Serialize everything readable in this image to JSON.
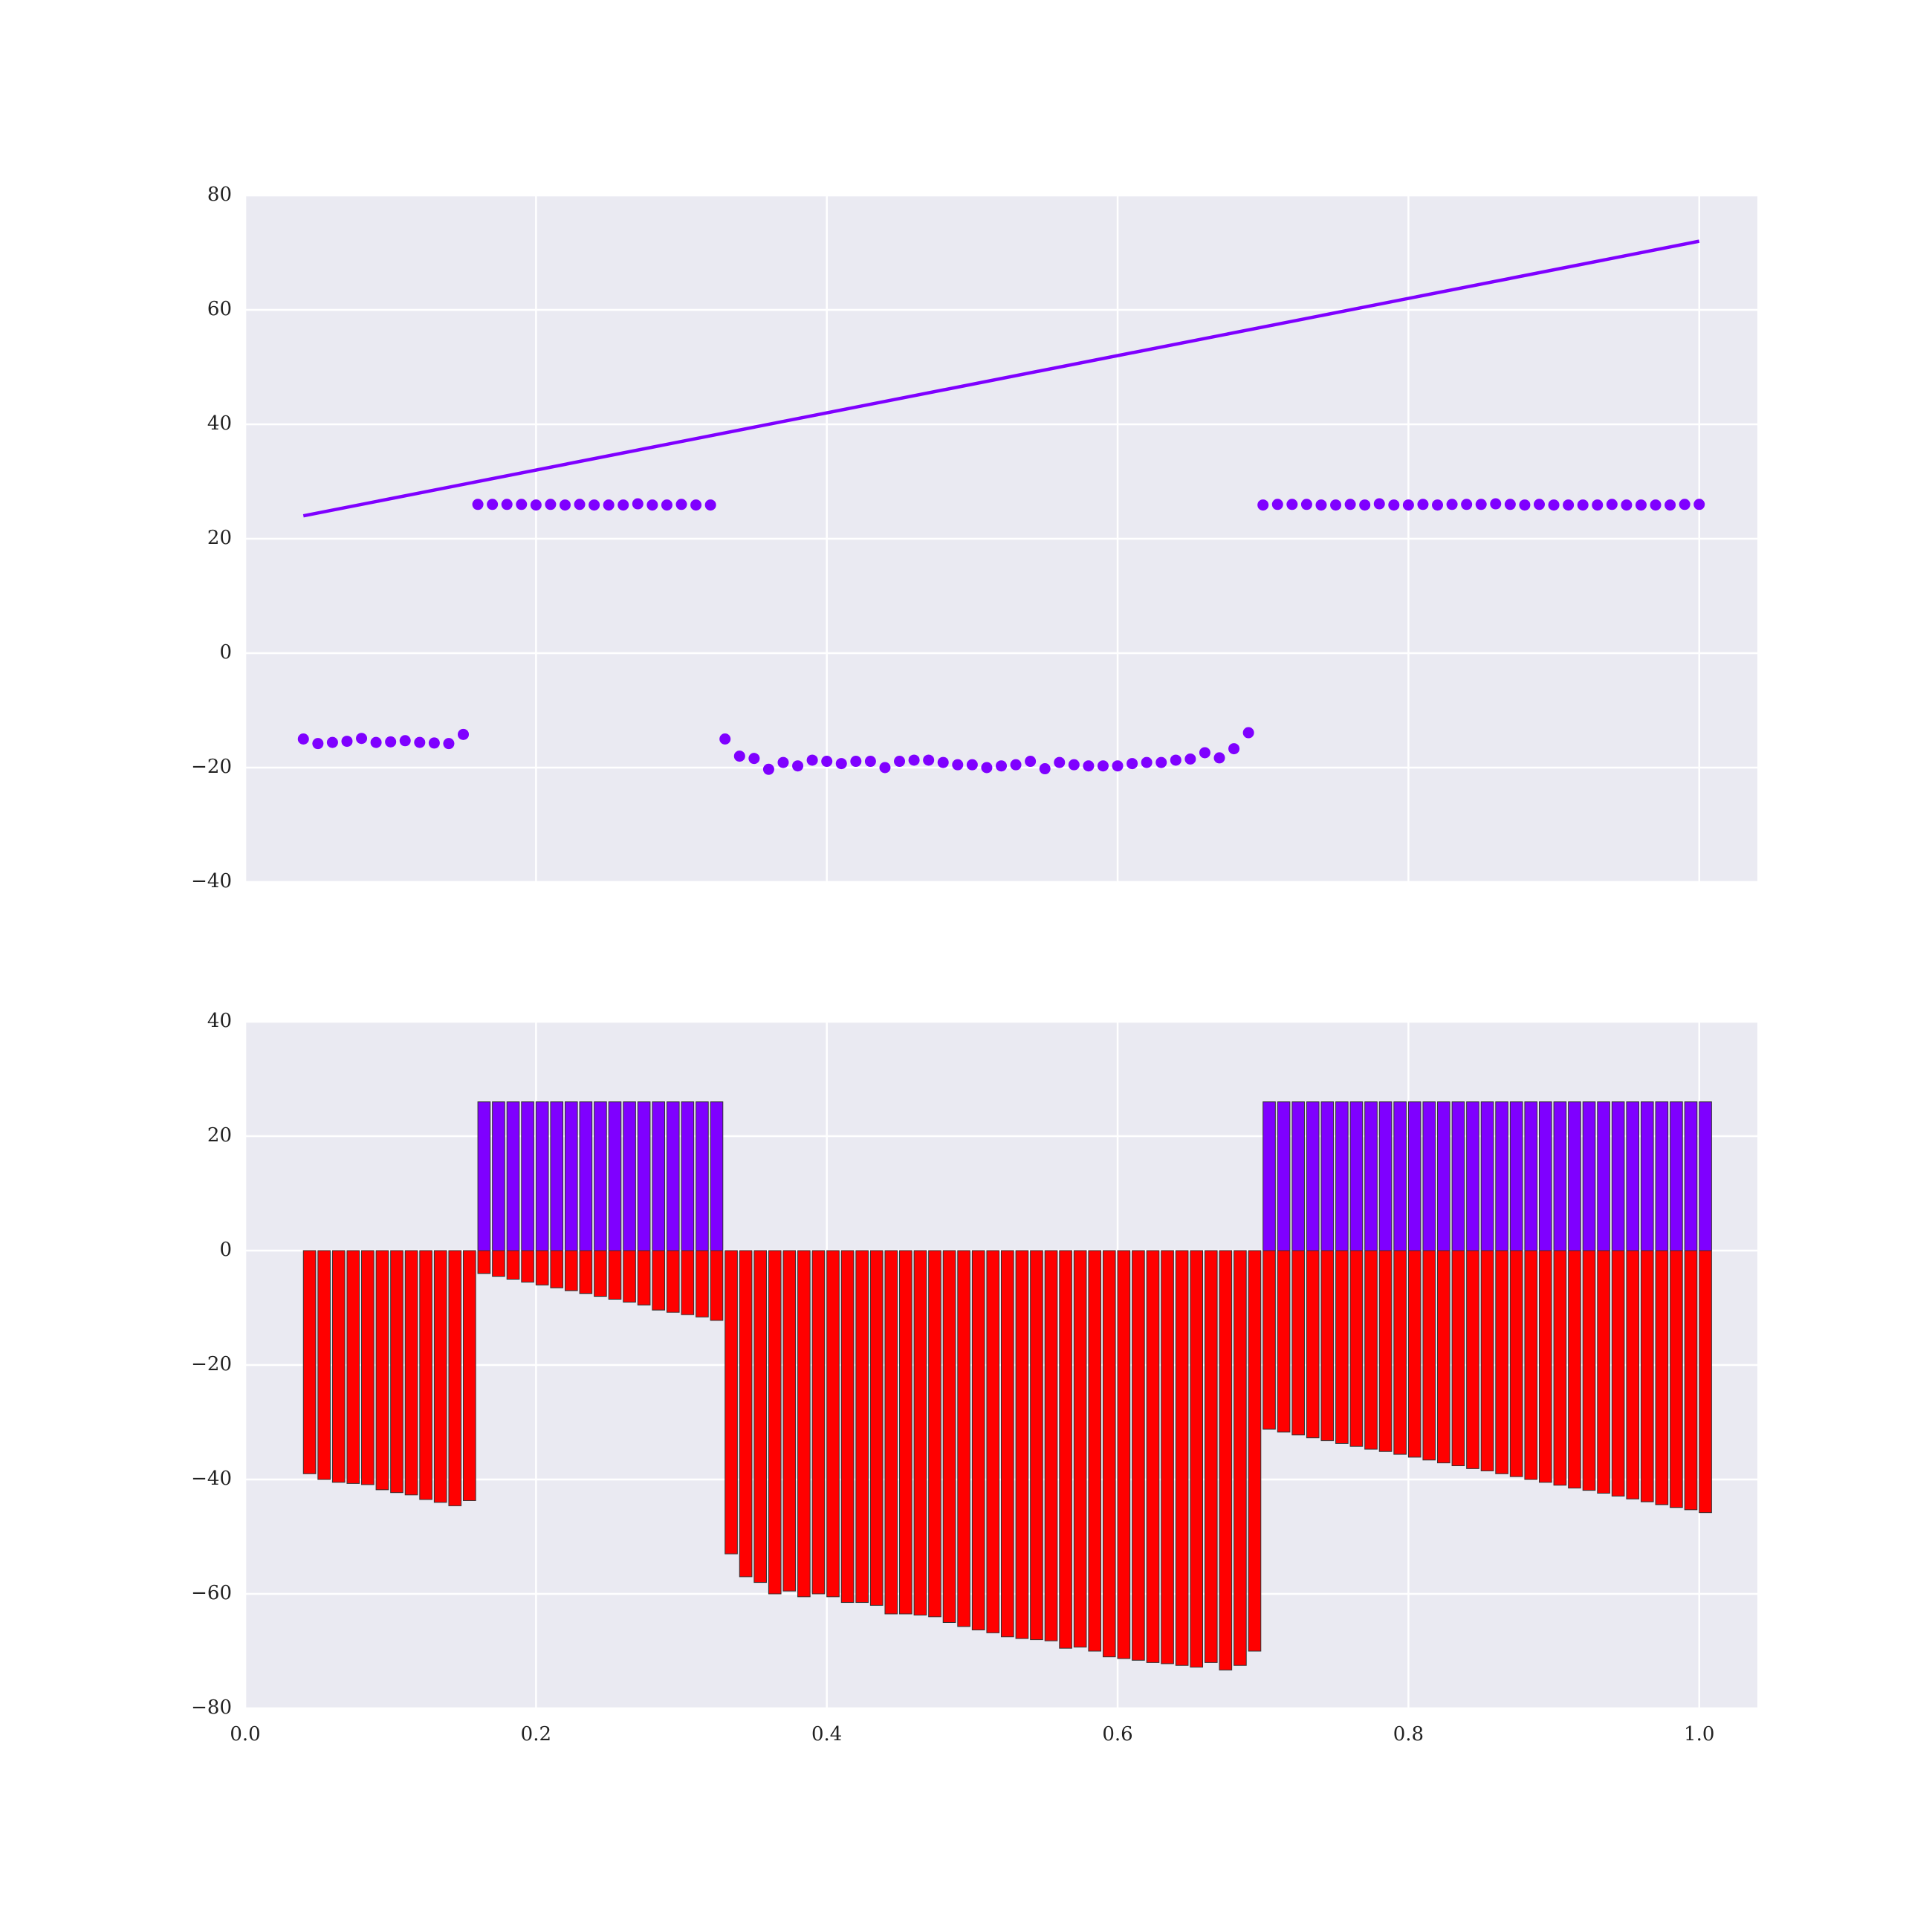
{
  "chart_data": [
    {
      "type": "scatter",
      "x": [
        0.04,
        0.05,
        0.06,
        0.07,
        0.08,
        0.09,
        0.1,
        0.11,
        0.12,
        0.13,
        0.14,
        0.15,
        0.16,
        0.17,
        0.18,
        0.19,
        0.2,
        0.21,
        0.22,
        0.23,
        0.24,
        0.25,
        0.26,
        0.27,
        0.28,
        0.29,
        0.3,
        0.31,
        0.32,
        0.33,
        0.34,
        0.35,
        0.36,
        0.37,
        0.38,
        0.39,
        0.4,
        0.41,
        0.42,
        0.43,
        0.44,
        0.45,
        0.46,
        0.47,
        0.48,
        0.49,
        0.5,
        0.51,
        0.52,
        0.53,
        0.54,
        0.55,
        0.56,
        0.57,
        0.58,
        0.59,
        0.6,
        0.61,
        0.62,
        0.63,
        0.64,
        0.65,
        0.66,
        0.67,
        0.68,
        0.69,
        0.7,
        0.71,
        0.72,
        0.73,
        0.74,
        0.75,
        0.76,
        0.77,
        0.78,
        0.79,
        0.8,
        0.81,
        0.82,
        0.83,
        0.84,
        0.85,
        0.86,
        0.87,
        0.88,
        0.89,
        0.9,
        0.91,
        0.92,
        0.93,
        0.94,
        0.95,
        0.96,
        0.97,
        0.98,
        0.99,
        1.0
      ],
      "series": [
        {
          "type": "line",
          "color": "#7f00ff",
          "x": [
            0.04,
            1.0
          ],
          "values": [
            24,
            72
          ]
        },
        {
          "type": "scatter",
          "color": "#7f00ff",
          "values": [
            -15,
            -15.8,
            -15.6,
            -15.4,
            -14.9,
            -15.6,
            -15.5,
            -15.3,
            -15.6,
            -15.7,
            -15.8,
            -14.2,
            26,
            26,
            26,
            26,
            25.9,
            26,
            25.9,
            26,
            25.9,
            25.9,
            25.9,
            26.1,
            25.9,
            25.9,
            26,
            25.9,
            25.9,
            -15,
            -18,
            -18.4,
            -20.3,
            -19.1,
            -19.7,
            -18.7,
            -18.9,
            -19.3,
            -18.9,
            -18.9,
            -20,
            -18.9,
            -18.7,
            -18.7,
            -19.1,
            -19.5,
            -19.5,
            -20,
            -19.7,
            -19.5,
            -18.9,
            -20.2,
            -19.1,
            -19.5,
            -19.7,
            -19.7,
            -19.7,
            -19.3,
            -19.1,
            -19.1,
            -18.7,
            -18.5,
            -17.4,
            -18.3,
            -16.7,
            -13.9,
            25.9,
            26,
            26,
            26,
            25.9,
            25.9,
            26,
            25.9,
            26.1,
            25.9,
            25.9,
            26,
            25.9,
            26,
            26,
            26,
            26.1,
            26,
            25.9,
            26,
            25.9,
            25.9,
            25.9,
            25.9,
            26,
            25.9,
            25.9,
            25.9,
            25.9,
            26,
            26
          ]
        }
      ],
      "xlim": [
        0,
        1.04
      ],
      "ylim": [
        -40,
        80
      ],
      "xticks": [
        0,
        0.2,
        0.4,
        0.6,
        0.8,
        1.0
      ],
      "show_xtick_labels": false,
      "yticks": [
        {
          "value": -40,
          "label": "−40"
        },
        {
          "value": -20,
          "label": "−20"
        },
        0,
        20,
        40,
        60,
        80
      ],
      "grid": true
    },
    {
      "type": "bar",
      "x": [
        0.04,
        0.05,
        0.06,
        0.07,
        0.08,
        0.09,
        0.1,
        0.11,
        0.12,
        0.13,
        0.14,
        0.15,
        0.16,
        0.17,
        0.18,
        0.19,
        0.2,
        0.21,
        0.22,
        0.23,
        0.24,
        0.25,
        0.26,
        0.27,
        0.28,
        0.29,
        0.3,
        0.31,
        0.32,
        0.33,
        0.34,
        0.35,
        0.36,
        0.37,
        0.38,
        0.39,
        0.4,
        0.41,
        0.42,
        0.43,
        0.44,
        0.45,
        0.46,
        0.47,
        0.48,
        0.49,
        0.5,
        0.51,
        0.52,
        0.53,
        0.54,
        0.55,
        0.56,
        0.57,
        0.58,
        0.59,
        0.6,
        0.61,
        0.62,
        0.63,
        0.64,
        0.65,
        0.66,
        0.67,
        0.68,
        0.69,
        0.7,
        0.71,
        0.72,
        0.73,
        0.74,
        0.75,
        0.76,
        0.77,
        0.78,
        0.79,
        0.8,
        0.81,
        0.82,
        0.83,
        0.84,
        0.85,
        0.86,
        0.87,
        0.88,
        0.89,
        0.9,
        0.91,
        0.92,
        0.93,
        0.94,
        0.95,
        0.96,
        0.97,
        0.98,
        0.99,
        1.0
      ],
      "series": [
        {
          "color": "#7f00ff",
          "values": [
            null,
            null,
            null,
            null,
            null,
            null,
            null,
            null,
            null,
            null,
            null,
            null,
            26,
            26,
            26,
            26,
            26,
            26,
            26,
            26,
            26,
            26,
            26,
            26,
            26,
            26,
            26,
            26,
            26,
            null,
            null,
            null,
            null,
            null,
            null,
            null,
            null,
            null,
            null,
            null,
            null,
            null,
            null,
            null,
            null,
            null,
            null,
            null,
            null,
            null,
            null,
            null,
            null,
            null,
            null,
            null,
            null,
            null,
            null,
            null,
            null,
            null,
            null,
            null,
            null,
            null,
            26,
            26,
            26,
            26,
            26,
            26,
            26,
            26,
            26,
            26,
            26,
            26,
            26,
            26,
            26,
            26,
            26,
            26,
            26,
            26,
            26,
            26,
            26,
            26,
            26,
            26,
            26,
            26,
            26,
            26,
            26
          ]
        },
        {
          "color": "#ff0000",
          "values": [
            -39,
            -40,
            -40.5,
            -40.7,
            -40.9,
            -41.8,
            -42.3,
            -42.7,
            -43.5,
            -44,
            -44.6,
            -43.7,
            -4,
            -4.5,
            -5,
            -5.5,
            -6,
            -6.5,
            -7,
            -7.5,
            -8,
            -8.5,
            -9,
            -9.5,
            -10.4,
            -10.8,
            -11.2,
            -11.6,
            -12.2,
            -53,
            -57,
            -58,
            -60,
            -59.5,
            -60.5,
            -60,
            -60.5,
            -61.5,
            -61.5,
            -62,
            -63.5,
            -63.5,
            -63.7,
            -64,
            -65,
            -65.7,
            -66.3,
            -66.8,
            -67.5,
            -67.8,
            -68,
            -68.2,
            -69.5,
            -69.3,
            -70,
            -71,
            -71.3,
            -71.6,
            -72,
            -72.2,
            -72.5,
            -72.8,
            -72,
            -73.3,
            -72.5,
            -70,
            -31.2,
            -31.7,
            -32.2,
            -32.7,
            -33.2,
            -33.7,
            -34.2,
            -34.7,
            -35.1,
            -35.6,
            -36.1,
            -36.6,
            -37.1,
            -37.6,
            -38.1,
            -38.5,
            -39,
            -39.5,
            -40,
            -40.5,
            -41,
            -41.5,
            -41.9,
            -42.4,
            -42.9,
            -43.4,
            -43.9,
            -44.4,
            -44.9,
            -45.3,
            -45.8
          ]
        }
      ],
      "xlim": [
        0,
        1.04
      ],
      "ylim": [
        -80,
        40
      ],
      "xticks": [
        {
          "value": 0,
          "label": "0.0"
        },
        0.2,
        0.4,
        0.6,
        0.8,
        {
          "value": 1.0,
          "label": "1.0"
        }
      ],
      "show_xtick_labels": true,
      "yticks": [
        {
          "value": -80,
          "label": "−80"
        },
        {
          "value": -60,
          "label": "−60"
        },
        {
          "value": -40,
          "label": "−40"
        },
        {
          "value": -20,
          "label": "−20"
        },
        0,
        20,
        40
      ],
      "grid": true
    }
  ]
}
